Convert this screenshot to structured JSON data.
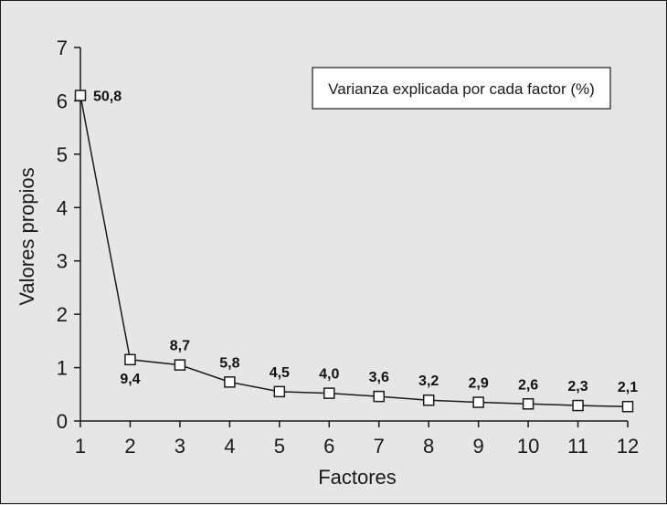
{
  "chart_data": {
    "type": "line",
    "xlabel": "Factores",
    "ylabel": "Valores propios",
    "xlim": [
      1,
      12
    ],
    "ylim": [
      0,
      7
    ],
    "x_ticks": [
      1,
      2,
      3,
      4,
      5,
      6,
      7,
      8,
      9,
      10,
      11,
      12
    ],
    "y_ticks": [
      0,
      1,
      2,
      3,
      4,
      5,
      6,
      7
    ],
    "grid": false,
    "legend_box_text": "Varianza explicada por cada factor (%)",
    "legend_placement": "top-right",
    "series": [
      {
        "x": [
          1,
          2,
          3,
          4,
          5,
          6,
          7,
          8,
          9,
          10,
          11,
          12
        ],
        "values": [
          6.1,
          1.15,
          1.05,
          0.73,
          0.55,
          0.52,
          0.46,
          0.39,
          0.35,
          0.32,
          0.29,
          0.27
        ],
        "data_labels": [
          "50,8",
          "9,4",
          "8,7",
          "5,8",
          "4,5",
          "4,0",
          "3,6",
          "3,2",
          "2,9",
          "2,6",
          "2,3",
          "2,1"
        ],
        "marker": "open-square",
        "color": "#1a1a1a"
      }
    ]
  }
}
